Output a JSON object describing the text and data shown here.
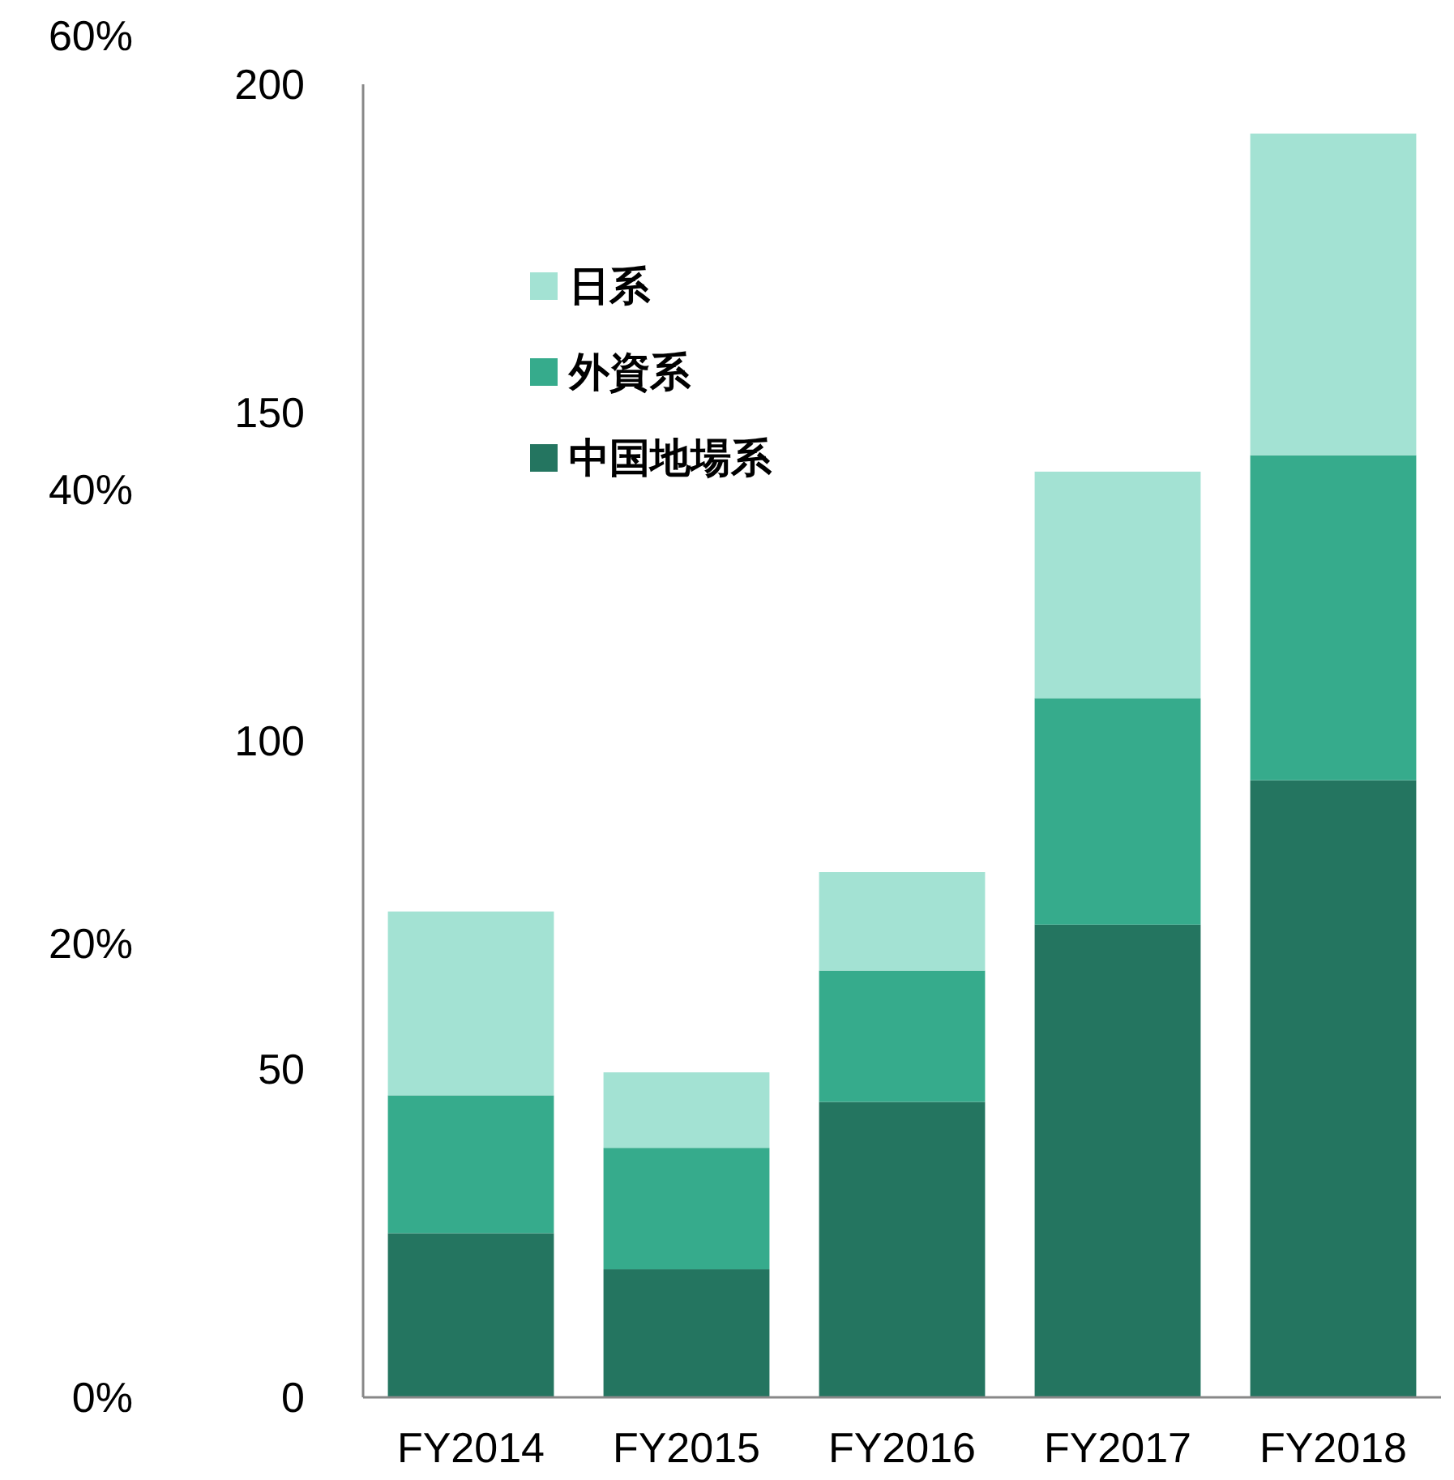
{
  "chart_data": {
    "type": "bar",
    "stacked": true,
    "categories": [
      "FY2014",
      "FY2015",
      "FY2016",
      "FY2017",
      "FY2018"
    ],
    "series": [
      {
        "name": "中国地場系",
        "color": "#247560",
        "values": [
          25,
          19.5,
          45,
          72,
          94
        ]
      },
      {
        "name": "外資系",
        "color": "#36ab8c",
        "values": [
          21,
          18.5,
          20,
          34.5,
          49.5
        ]
      },
      {
        "name": "日系",
        "color": "#a3e2d3",
        "values": [
          28,
          11.5,
          15,
          34.5,
          49
        ]
      }
    ],
    "ylim": [
      0,
      200
    ],
    "yticks": [
      0,
      50,
      100,
      150,
      200
    ],
    "y2lim": [
      0,
      60
    ],
    "y2ticks": [
      {
        "value": 0,
        "label": "0%"
      },
      {
        "value": 20,
        "label": "20%"
      },
      {
        "value": 40,
        "label": "40%"
      },
      {
        "value": 60,
        "label": "60%"
      }
    ],
    "legend": "top left"
  }
}
